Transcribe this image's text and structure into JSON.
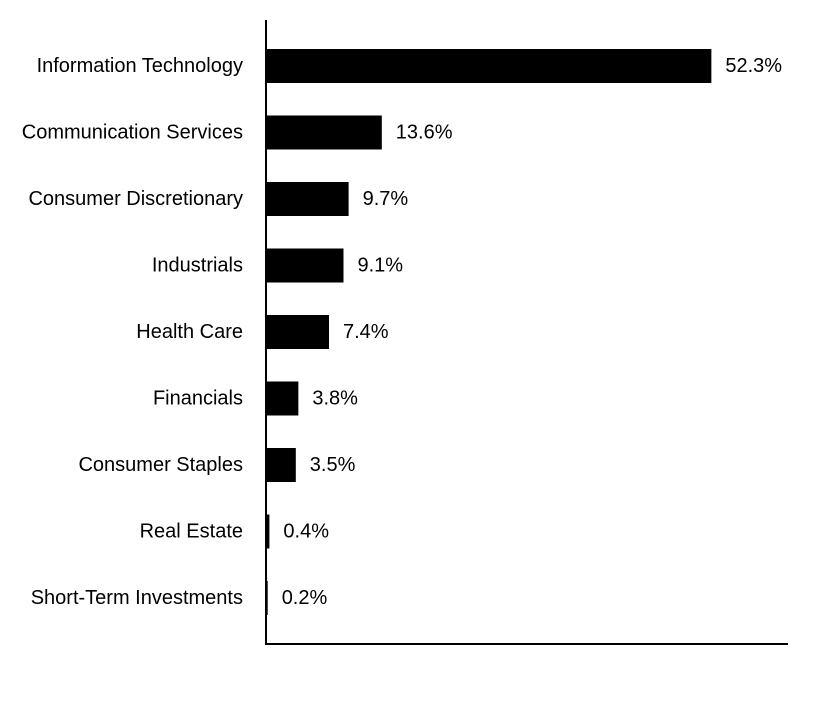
{
  "chart_data": {
    "type": "bar",
    "orientation": "horizontal",
    "categories": [
      "Information Technology",
      "Communication Services",
      "Consumer Discretionary",
      "Industrials",
      "Health Care",
      "Financials",
      "Consumer Staples",
      "Real Estate",
      "Short-Term Investments"
    ],
    "values": [
      52.3,
      13.6,
      9.7,
      9.1,
      7.4,
      3.8,
      3.5,
      0.4,
      0.2
    ],
    "value_labels": [
      "52.3%",
      "13.6%",
      "9.7%",
      "9.1%",
      "7.4%",
      "3.8%",
      "3.5%",
      "0.4%",
      "0.2%"
    ],
    "title": "",
    "xlabel": "",
    "ylabel": "",
    "xlim": [
      0,
      61.3
    ],
    "grid": false,
    "legend": "none",
    "bar_color": "#000000",
    "axis_color": "#000000"
  }
}
